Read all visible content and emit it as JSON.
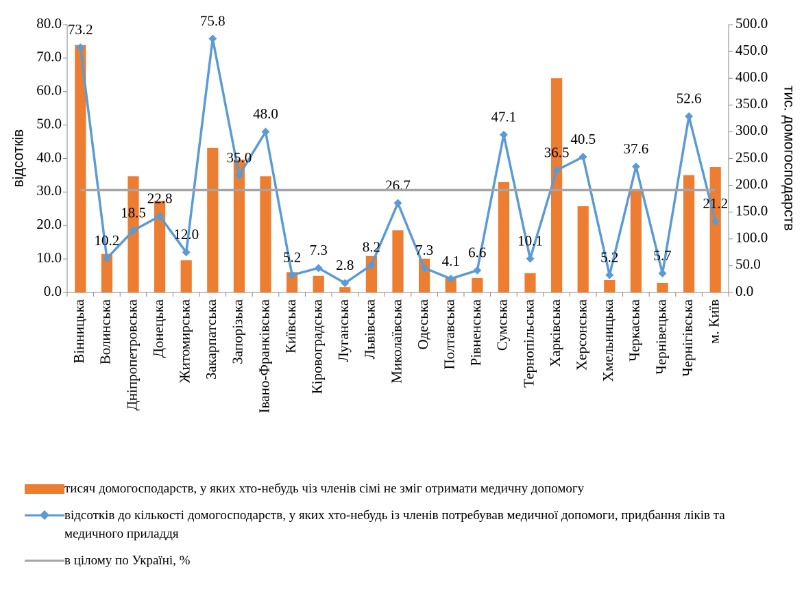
{
  "chart_data": {
    "type": "bar-line",
    "categories": [
      "Вінницька",
      "Волинська",
      "Дніпропетровська",
      "Донецька",
      "Житомирська",
      "Закарпатська",
      "Запорізька",
      "Івано-Франківська",
      "Київська",
      "Кіровоградська",
      "Луганська",
      "Львівська",
      "Миколаївська",
      "Одеська",
      "Полтавська",
      "Рівненська",
      "Сумська",
      "Тернопільська",
      "Харківська",
      "Херсонська",
      "Хмельницька",
      "Черкаська",
      "Чернівецька",
      "Чернігівська",
      "м. Київ"
    ],
    "ylabel": "відсотків",
    "y2label": "тис. домогосподарств",
    "ylim": [
      0,
      80
    ],
    "yticks": [
      {
        "value": 0,
        "label": "0.0"
      },
      {
        "value": 10,
        "label": "10.0"
      },
      {
        "value": 20,
        "label": "20.0"
      },
      {
        "value": 30,
        "label": "30.0"
      },
      {
        "value": 40,
        "label": "40.0"
      },
      {
        "value": 50,
        "label": "50.0"
      },
      {
        "value": 60,
        "label": "60.0"
      },
      {
        "value": 70,
        "label": "70.0"
      },
      {
        "value": 80,
        "label": "80.0"
      }
    ],
    "y2lim": [
      0,
      500
    ],
    "y2ticks": [
      {
        "value": 0,
        "label": "0.0"
      },
      {
        "value": 50,
        "label": "50.0"
      },
      {
        "value": 100,
        "label": "100.0"
      },
      {
        "value": 150,
        "label": "150.0"
      },
      {
        "value": 200,
        "label": "200.0"
      },
      {
        "value": 250,
        "label": "250.0"
      },
      {
        "value": 300,
        "label": "300.0"
      },
      {
        "value": 350,
        "label": "350.0"
      },
      {
        "value": 400,
        "label": "400.0"
      },
      {
        "value": 450,
        "label": "450.0"
      },
      {
        "value": 500,
        "label": "500.0"
      }
    ],
    "series": [
      {
        "name": "тисяч домогосподарств, у яких хто-небудь чіз членів сімі не зміг отримати медичну допомогу",
        "type": "bar",
        "axis": "y2",
        "color": "#ed7d31",
        "values": [
          462,
          72,
          217,
          171,
          60,
          270,
          248,
          217,
          38,
          31,
          10,
          68,
          116,
          63,
          27,
          27,
          206,
          36,
          400,
          161,
          23,
          191,
          18,
          219,
          234
        ]
      },
      {
        "name": "відсотків до кількості домогосподарств, у яких хто-небудь із членів потребував медичної допомоги, придбання ліків та медичного приладдя",
        "type": "line",
        "color": "#5b9bd5",
        "values": [
          73.2,
          10.2,
          18.5,
          22.8,
          12.0,
          75.8,
          35.0,
          48.0,
          5.2,
          7.3,
          2.8,
          8.2,
          26.7,
          7.3,
          4.1,
          6.6,
          47.1,
          10.1,
          36.5,
          40.5,
          5.2,
          37.6,
          5.7,
          52.6,
          21.2
        ],
        "value_labels": [
          "73.2",
          "10.2",
          "18.5",
          "22.8",
          "12.0",
          "75.8",
          "35.0",
          "48.0",
          "5.2",
          "7.3",
          "2.8",
          "8.2",
          "26.7",
          "7.3",
          "4.1",
          "6.6",
          "47.1",
          "10.1",
          "36.5",
          "40.5",
          "5.2",
          "37.6",
          "5.7",
          "52.6",
          "21.2"
        ]
      },
      {
        "name": "в цілому по Україні, %",
        "type": "line",
        "color": "#a5a5a5",
        "values": [
          30.6,
          30.6,
          30.6,
          30.6,
          30.6,
          30.6,
          30.6,
          30.6,
          30.6,
          30.6,
          30.6,
          30.6,
          30.6,
          30.6,
          30.6,
          30.6,
          30.6,
          30.6,
          30.6,
          30.6,
          30.6,
          30.6,
          30.6,
          30.6,
          30.6
        ]
      }
    ]
  }
}
